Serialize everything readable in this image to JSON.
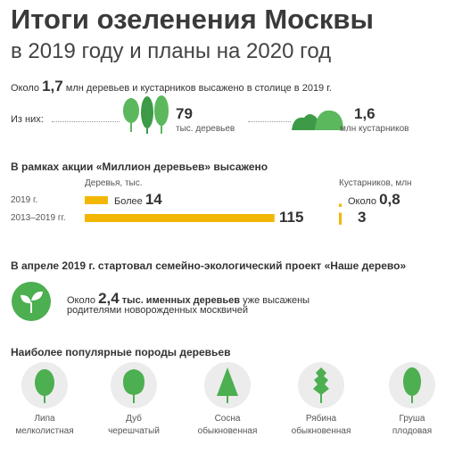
{
  "header": {
    "title": "Итоги озеленения Москвы",
    "subtitle": "в 2019 году и планы на 2020 год"
  },
  "intro": {
    "prefix": "Около",
    "value": "1,7",
    "text": "млн деревьев и кустарников высажено в столице в 2019 г."
  },
  "breakdown": {
    "label": "Из них:",
    "trees": {
      "value": "79",
      "unit": "тыс. деревьев"
    },
    "shrubs": {
      "value": "1,6",
      "unit": "млн кустарников"
    }
  },
  "campaign": {
    "title": "В рамках акции «Миллион деревьев» высажено",
    "trees_header": "Деревья, тыс.",
    "shrubs_header": "Кустарников, млн",
    "rows": [
      {
        "label": "2019 г.",
        "trees_prefix": "Более",
        "trees": 14,
        "shrubs_prefix": "Около",
        "shrubs": {
          "value": 0.8,
          "label": "0,8"
        }
      },
      {
        "label": "2013–2019 гг.",
        "trees": 115,
        "shrubs": 3
      }
    ]
  },
  "project": {
    "title": "В апреле 2019 г. стартовал семейно-экологический проект «Наше дерево»",
    "prefix": "Около",
    "value": "2,4",
    "bold_text": "тыс. именных деревьев",
    "text": "уже высажены",
    "line2": "родителями новорожденных москвичей"
  },
  "species": {
    "title": "Наиболее популярные породы деревьев",
    "items": [
      {
        "name": "Липа",
        "desc": "мелколистная"
      },
      {
        "name": "Дуб",
        "desc": "черешчатый"
      },
      {
        "name": "Сосна",
        "desc": "обыкновенная"
      },
      {
        "name": "Рябина",
        "desc": "обыкновенная"
      },
      {
        "name": "Груша",
        "desc": "плодовая"
      }
    ]
  }
}
